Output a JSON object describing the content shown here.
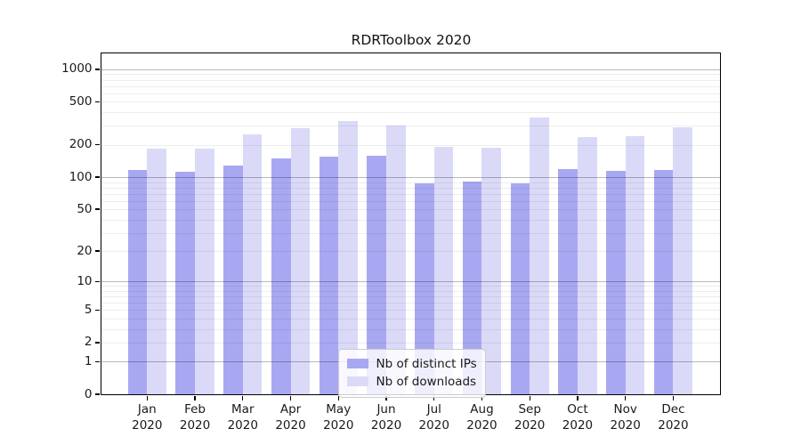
{
  "figure": {
    "background": "#ffffff",
    "text_color": "#1a1a1a"
  },
  "chart_data": {
    "type": "bar",
    "title": "RDRToolbox 2020",
    "xlabel": "",
    "ylabel": "",
    "categories": [
      "Jan",
      "Feb",
      "Mar",
      "Apr",
      "May",
      "Jun",
      "Jul",
      "Aug",
      "Sep",
      "Oct",
      "Nov",
      "Dec"
    ],
    "year_label": "2020",
    "series": [
      {
        "name": "Nb of distinct IPs",
        "color": "#a8a8f2",
        "values": [
          116,
          113,
          129,
          149,
          154,
          157,
          88,
          91,
          87,
          120,
          114,
          117
        ]
      },
      {
        "name": "Nb of downloads",
        "color": "#dadaf8",
        "values": [
          185,
          185,
          248,
          285,
          330,
          300,
          190,
          188,
          355,
          236,
          242,
          290
        ]
      }
    ],
    "yscale": "log10(1+y)",
    "yticks": [
      0,
      1,
      2,
      5,
      10,
      20,
      50,
      100,
      200,
      500,
      1000
    ],
    "major_grid_values": [
      1,
      10,
      100,
      1000
    ],
    "ylim": [
      0,
      1450
    ],
    "grid": true,
    "grid_above_bars": true,
    "legend_position": "lower-center"
  }
}
